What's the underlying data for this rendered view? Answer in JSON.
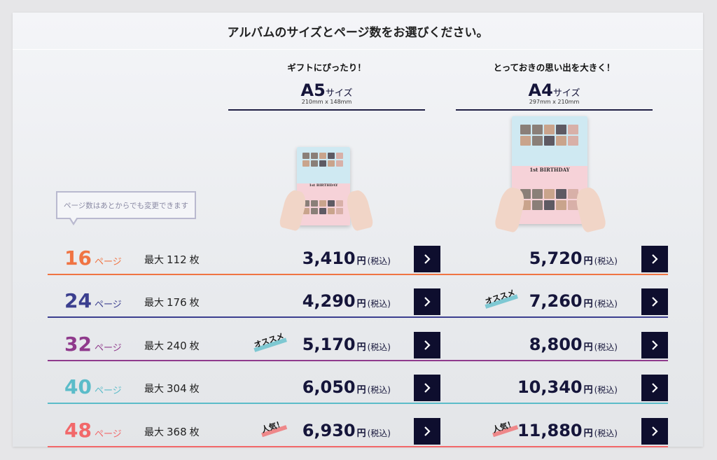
{
  "header": {
    "title": "アルバムのサイズとページ数をお選びください。"
  },
  "columns": [
    {
      "tag": "ギフトにぴったり！",
      "size": "A5",
      "size_suffix": "サイズ",
      "dims": "210mm x 148mm"
    },
    {
      "tag": "とっておきの思い出を大きく！",
      "size": "A4",
      "size_suffix": "サイズ",
      "dims": "297mm x 210mm"
    }
  ],
  "book_cover": {
    "title": "1st BIRTHDAY"
  },
  "tooltip": {
    "text": "ページ数はあとからでも変更できます"
  },
  "labels": {
    "page_unit": "ページ",
    "max_prefix": "最大",
    "max_suffix": "枚",
    "yen": "円",
    "tax": "(税込)"
  },
  "rows": [
    {
      "pages": "16",
      "max": "112",
      "color": "#f07443",
      "a5_price": "3,410",
      "a4_price": "5,720",
      "a5_badge": "",
      "a4_badge": ""
    },
    {
      "pages": "24",
      "max": "176",
      "color": "#3b3f8f",
      "a5_price": "4,290",
      "a4_price": "7,260",
      "a5_badge": "",
      "a4_badge": "オススメ"
    },
    {
      "pages": "32",
      "max": "240",
      "color": "#8f3a8c",
      "a5_price": "5,170",
      "a4_price": "8,800",
      "a5_badge": "オススメ",
      "a4_badge": ""
    },
    {
      "pages": "40",
      "max": "304",
      "color": "#5bbcc9",
      "a5_price": "6,050",
      "a4_price": "10,340",
      "a5_badge": "",
      "a4_badge": ""
    },
    {
      "pages": "48",
      "max": "368",
      "color": "#f2686a",
      "a5_price": "6,930",
      "a4_price": "11,880",
      "a5_badge": "人気！",
      "a4_badge": "人気！"
    }
  ],
  "colors": {
    "button": "#0e0e2e",
    "price_text": "#15153a",
    "badge_recommend": "#5bbcc9",
    "badge_popular": "#f2686a"
  },
  "icons": {
    "button": "chevron-right-icon"
  }
}
